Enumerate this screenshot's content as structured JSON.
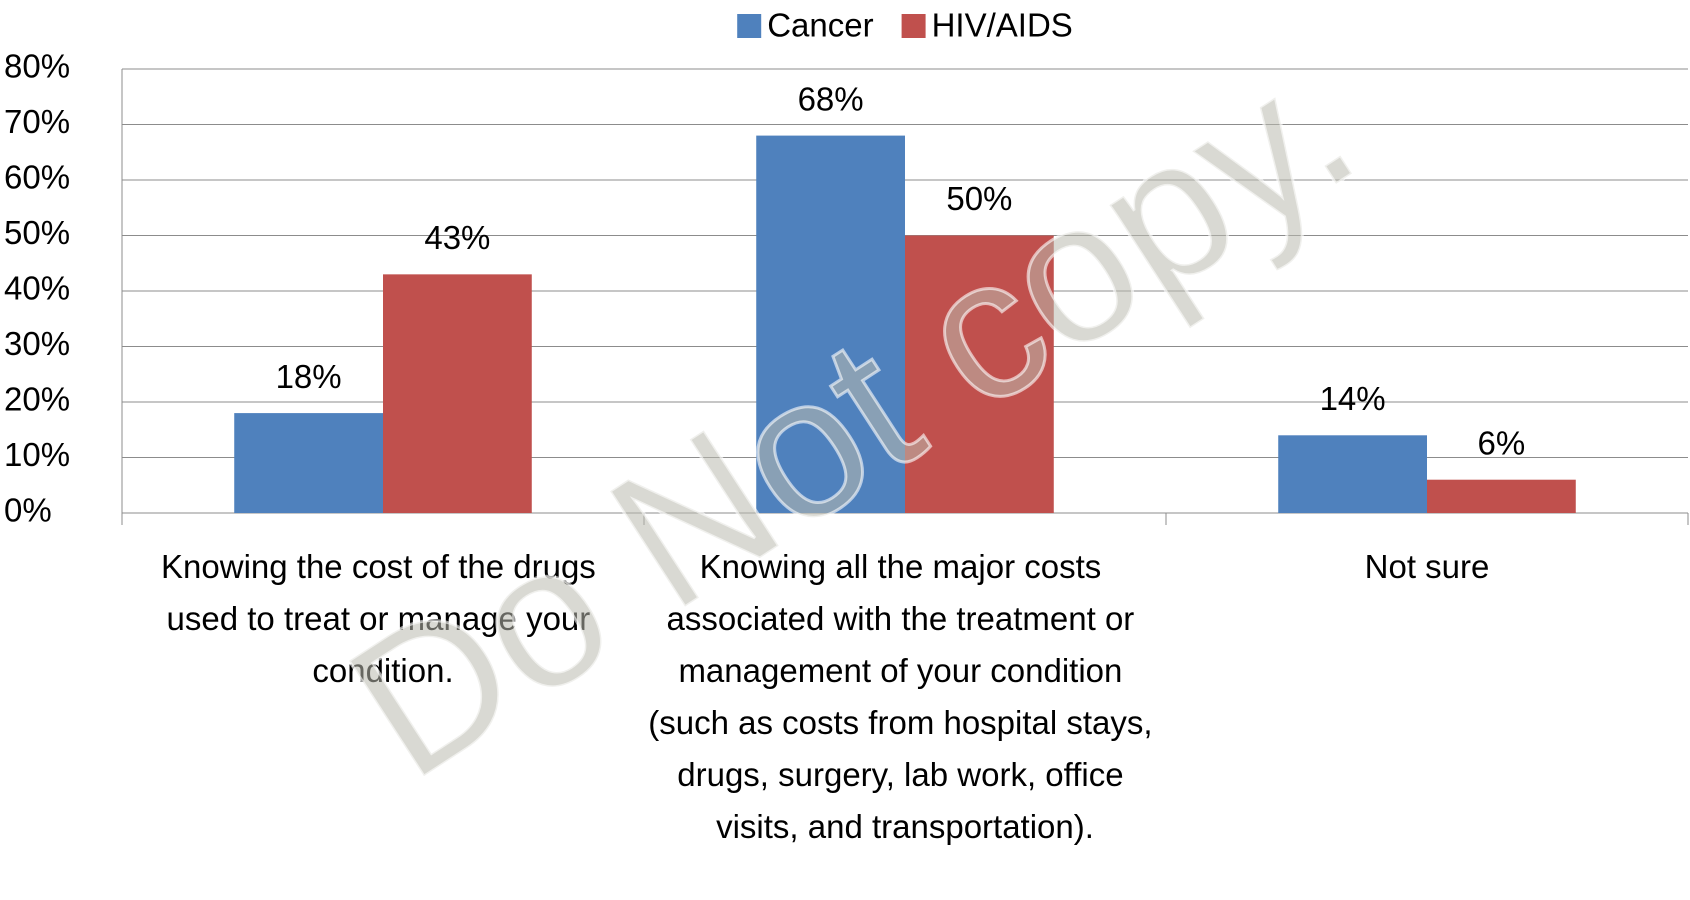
{
  "chart_data": {
    "type": "bar",
    "categories": [
      "Knowing the cost of the drugs used to treat or manage your condition.",
      "Knowing all the major costs associated with the treatment or management of your condition (such as costs from hospital stays, drugs, surgery, lab work, office visits, and transportation).",
      "Not sure"
    ],
    "series": [
      {
        "name": "Cancer",
        "color": "#4f81bd",
        "values": [
          18,
          68,
          14
        ],
        "value_labels": [
          "18%",
          "68%",
          "14%"
        ]
      },
      {
        "name": "HIV/AIDS",
        "color": "#c0504d",
        "values": [
          43,
          50,
          6
        ],
        "value_labels": [
          "43%",
          "50%",
          "6%"
        ]
      }
    ],
    "ylim": [
      0,
      80
    ],
    "yticks": [
      {
        "value": 0,
        "label": "0%"
      },
      {
        "value": 10,
        "label": "10%"
      },
      {
        "value": 20,
        "label": "20%"
      },
      {
        "value": 30,
        "label": "30%"
      },
      {
        "value": 40,
        "label": "40%"
      },
      {
        "value": 50,
        "label": "50%"
      },
      {
        "value": 60,
        "label": "60%"
      },
      {
        "value": 70,
        "label": "70%"
      },
      {
        "value": 80,
        "label": "80%"
      }
    ],
    "grid": true,
    "legend": "top",
    "watermark": "Do Not copy."
  }
}
